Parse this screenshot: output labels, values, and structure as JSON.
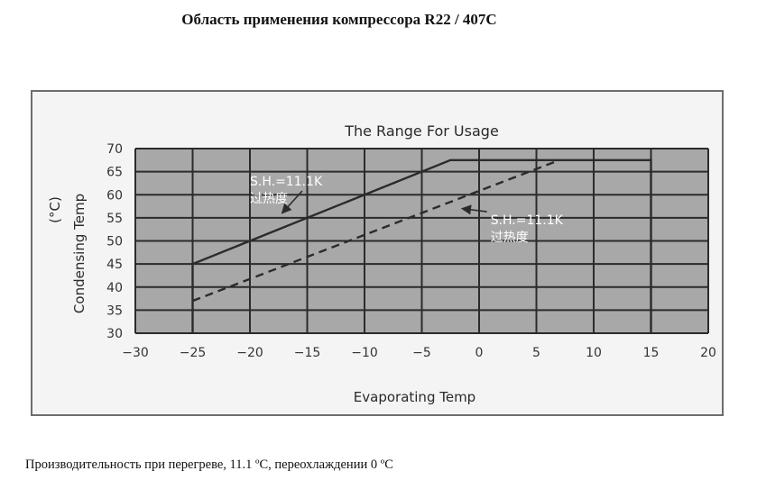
{
  "document": {
    "title": "Область применения компрессора R22 / 407C",
    "caption": "Производительность при перегреве, 11.1 ºC, переохлаждении 0 ºC"
  },
  "chart_data": {
    "type": "line",
    "title": "The Range For Usage",
    "xlabel": "Evaporating Temp",
    "ylabel": "Condensing Temp",
    "ylabel_unit": "(°C)",
    "xlim": [
      -30,
      20
    ],
    "ylim": [
      30,
      70
    ],
    "x_ticks": [
      -30,
      -25,
      -20,
      -15,
      -10,
      -5,
      0,
      5,
      10,
      15,
      20
    ],
    "x_tick_labels": [
      "−30",
      "−25",
      "−20",
      "−15",
      "−10",
      "−5",
      "0",
      "5",
      "10",
      "15",
      "20"
    ],
    "y_ticks": [
      30,
      35,
      40,
      45,
      50,
      55,
      60,
      65,
      70
    ],
    "grid": true,
    "colors": {
      "plot_background": "#a8a8a8",
      "grid": "#2b2b2b",
      "lines": "#2b2b2b",
      "annotation_text": "#ffffff"
    },
    "series": [
      {
        "style": "solid",
        "x": [
          -25,
          -25,
          -2.5,
          15,
          15
        ],
        "y": [
          30,
          45,
          67.5,
          67.5,
          30
        ]
      },
      {
        "style": "dashed",
        "x": [
          -25,
          7
        ],
        "y": [
          37,
          67.5
        ]
      }
    ],
    "annotations": [
      {
        "line1": "S.H.=11.1K",
        "line2": "过热度",
        "at": [
          -20,
          62
        ],
        "arrow_to": [
          -17.2,
          56
        ]
      },
      {
        "line1": "S.H.=11.1K",
        "line2": "过热度",
        "at": [
          1,
          53.6
        ],
        "arrow_to": [
          -1.5,
          57
        ]
      }
    ]
  }
}
